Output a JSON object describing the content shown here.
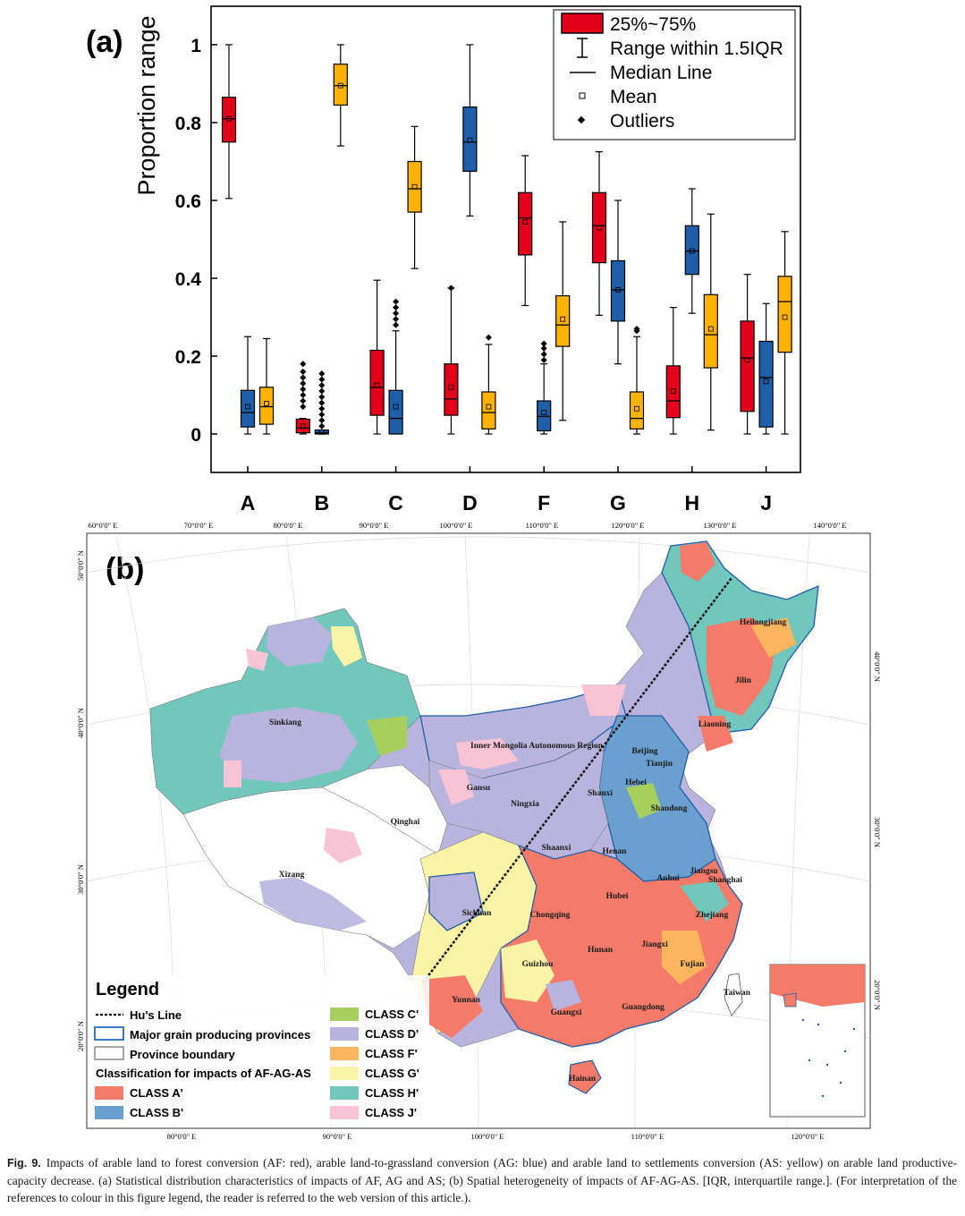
{
  "panel_a": {
    "label": "(a)",
    "legend": {
      "box": "25%~75%",
      "whisker": "Range within 1.5IQR",
      "median": "Median Line",
      "mean": "Mean",
      "outliers": "Outliers"
    }
  },
  "chart_data": {
    "type": "box",
    "ylabel": "Proportion range",
    "ylim": [
      -0.1,
      1.1
    ],
    "yticks": [
      "0",
      "0.2",
      "0.4",
      "0.6",
      "0.8",
      "1"
    ],
    "categories": [
      "A",
      "B",
      "C",
      "D",
      "F",
      "G",
      "H",
      "J"
    ],
    "colors": {
      "AF": "#e2001a",
      "AG": "#1f5ea8",
      "AS": "#ffb300"
    },
    "series": [
      {
        "key": "AF",
        "color": "#e2001a",
        "boxes": [
          {
            "cat": "A",
            "min": 0.605,
            "q1": 0.75,
            "median": 0.81,
            "q3": 0.865,
            "max": 1.0,
            "mean": 0.81,
            "outliers": []
          },
          {
            "cat": "B",
            "min": 0.0,
            "q1": 0.003,
            "median": 0.015,
            "q3": 0.038,
            "max": 0.04,
            "mean": 0.02,
            "outliers": [
              0.07,
              0.085,
              0.1,
              0.115,
              0.13,
              0.145,
              0.16,
              0.18
            ]
          },
          {
            "cat": "C",
            "min": 0.0,
            "q1": 0.048,
            "median": 0.12,
            "q3": 0.215,
            "max": 0.395,
            "mean": 0.125,
            "outliers": []
          },
          {
            "cat": "D",
            "min": 0.0,
            "q1": 0.048,
            "median": 0.09,
            "q3": 0.18,
            "max": 0.375,
            "mean": 0.12,
            "outliers": [
              0.375
            ]
          },
          {
            "cat": "F",
            "min": 0.33,
            "q1": 0.46,
            "median": 0.555,
            "q3": 0.62,
            "max": 0.715,
            "mean": 0.545,
            "outliers": []
          },
          {
            "cat": "G",
            "min": 0.305,
            "q1": 0.44,
            "median": 0.535,
            "q3": 0.62,
            "max": 0.725,
            "mean": 0.53,
            "outliers": []
          },
          {
            "cat": "H",
            "min": 0.0,
            "q1": 0.042,
            "median": 0.085,
            "q3": 0.175,
            "max": 0.325,
            "mean": 0.11,
            "outliers": []
          },
          {
            "cat": "J",
            "min": 0.0,
            "q1": 0.058,
            "median": 0.195,
            "q3": 0.29,
            "max": 0.41,
            "mean": 0.19,
            "outliers": []
          }
        ]
      },
      {
        "key": "AG",
        "color": "#1f5ea8",
        "boxes": [
          {
            "cat": "A",
            "min": 0.0,
            "q1": 0.018,
            "median": 0.055,
            "q3": 0.112,
            "max": 0.25,
            "mean": 0.07,
            "outliers": []
          },
          {
            "cat": "B",
            "min": 0.0,
            "q1": 0.0,
            "median": 0.003,
            "q3": 0.01,
            "max": 0.01,
            "mean": 0.005,
            "outliers": [
              0.02,
              0.035,
              0.05,
              0.065,
              0.08,
              0.095,
              0.11,
              0.125,
              0.14,
              0.155
            ]
          },
          {
            "cat": "C",
            "min": 0.0,
            "q1": 0.0,
            "median": 0.04,
            "q3": 0.112,
            "max": 0.265,
            "mean": 0.07,
            "outliers": [
              0.28,
              0.295,
              0.31,
              0.325,
              0.34
            ]
          },
          {
            "cat": "D",
            "min": 0.56,
            "q1": 0.675,
            "median": 0.75,
            "q3": 0.84,
            "max": 1.0,
            "mean": 0.755,
            "outliers": []
          },
          {
            "cat": "F",
            "min": 0.0,
            "q1": 0.008,
            "median": 0.045,
            "q3": 0.085,
            "max": 0.18,
            "mean": 0.055,
            "outliers": [
              0.19,
              0.205,
              0.22,
              0.232
            ]
          },
          {
            "cat": "G",
            "min": 0.18,
            "q1": 0.29,
            "median": 0.37,
            "q3": 0.445,
            "max": 0.6,
            "mean": 0.37,
            "outliers": []
          },
          {
            "cat": "H",
            "min": 0.31,
            "q1": 0.41,
            "median": 0.47,
            "q3": 0.535,
            "max": 0.63,
            "mean": 0.47,
            "outliers": []
          },
          {
            "cat": "J",
            "min": 0.0,
            "q1": 0.018,
            "median": 0.145,
            "q3": 0.238,
            "max": 0.335,
            "mean": 0.135,
            "outliers": []
          }
        ]
      },
      {
        "key": "AS",
        "color": "#ffb300",
        "boxes": [
          {
            "cat": "A",
            "min": 0.0,
            "q1": 0.025,
            "median": 0.07,
            "q3": 0.12,
            "max": 0.245,
            "mean": 0.078,
            "outliers": []
          },
          {
            "cat": "B",
            "min": 0.74,
            "q1": 0.845,
            "median": 0.895,
            "q3": 0.95,
            "max": 1.0,
            "mean": 0.895,
            "outliers": []
          },
          {
            "cat": "C",
            "min": 0.425,
            "q1": 0.57,
            "median": 0.63,
            "q3": 0.7,
            "max": 0.79,
            "mean": 0.635,
            "outliers": []
          },
          {
            "cat": "D",
            "min": 0.0,
            "q1": 0.013,
            "median": 0.055,
            "q3": 0.108,
            "max": 0.23,
            "mean": 0.07,
            "outliers": [
              0.248
            ]
          },
          {
            "cat": "F",
            "min": 0.035,
            "q1": 0.225,
            "median": 0.28,
            "q3": 0.355,
            "max": 0.545,
            "mean": 0.295,
            "outliers": []
          },
          {
            "cat": "G",
            "min": 0.0,
            "q1": 0.013,
            "median": 0.04,
            "q3": 0.108,
            "max": 0.25,
            "mean": 0.065,
            "outliers": [
              0.265,
              0.27
            ]
          },
          {
            "cat": "H",
            "min": 0.01,
            "q1": 0.17,
            "median": 0.255,
            "q3": 0.358,
            "max": 0.565,
            "mean": 0.27,
            "outliers": []
          },
          {
            "cat": "J",
            "min": 0.0,
            "q1": 0.21,
            "median": 0.34,
            "q3": 0.405,
            "max": 0.52,
            "mean": 0.3,
            "outliers": []
          }
        ]
      }
    ]
  },
  "panel_b": {
    "label": "(b)",
    "top_lon_labels": [
      "60°0'0\" E",
      "70°0'0\" E",
      "80°0'0\" E",
      "90°0'0\" E",
      "100°0'0\" E",
      "110°0'0\" E",
      "120°0'0\" E",
      "130°0'0\" E",
      "140°0'0\" E"
    ],
    "bottom_lon_labels": [
      "80°0'0\" E",
      "90°0'0\" E",
      "100°0'0\" E",
      "110°0'0\" E",
      "120°0'0\" E"
    ],
    "left_lat_labels": [
      "50°0'0\" N",
      "40°0'0\" N",
      "30°0'0\" N",
      "20°0'0\" N"
    ],
    "right_lat_labels": [
      "40°0'0\" N",
      "30°0'0\" N",
      "20°0'0\" N"
    ],
    "place_names": [
      "Heilongjiang",
      "Jilin",
      "Liaoning",
      "Inner Mongolia Autonomous Region",
      "Sinkiang",
      "Beijing",
      "Tianjin",
      "Hebei",
      "Shanxi",
      "Shandong",
      "Gansu",
      "Ningxia",
      "Qinghai",
      "Shaanxi",
      "Henan",
      "Xizang",
      "Jiangsu",
      "Anhui",
      "Shanghai",
      "Hubei",
      "Sichuan",
      "Chongqing",
      "Zhejiang",
      "Hunan",
      "Jiangxi",
      "Guizhou",
      "Fujian",
      "Yunnan",
      "Taiwan",
      "Guangxi",
      "Guangdong",
      "Hainan"
    ],
    "legend": {
      "title": "Legend",
      "hu_line": "Hu's Line",
      "major_grain": "Major grain producing provinces",
      "province_boundary": "Province boundary",
      "classification_title": "Classification for impacts of AF-AG-AS",
      "classes": [
        {
          "label": "CLASS A'",
          "color": "#f47b6a"
        },
        {
          "label": "CLASS B'",
          "color": "#6a9fd0"
        },
        {
          "label": "CLASS C'",
          "color": "#a7cf5e"
        },
        {
          "label": "CLASS D'",
          "color": "#b9b4dd"
        },
        {
          "label": "CLASS F'",
          "color": "#fdb45e"
        },
        {
          "label": "CLASS G'",
          "color": "#fbf4a6"
        },
        {
          "label": "CLASS H'",
          "color": "#72c7bd"
        },
        {
          "label": "CLASS J'",
          "color": "#f9c3d6"
        }
      ]
    }
  },
  "caption": {
    "label": "Fig. 9.",
    "text": "Impacts of arable land to forest conversion (AF: red), arable land-to-grassland conversion (AG: blue) and arable land to settlements conversion (AS: yellow) on arable land productive-capacity decrease. (a) Statistical distribution characteristics of impacts of AF, AG and AS; (b) Spatial heterogeneity of impacts of AF-AG-AS. [IQR, interquartile range.]. (For interpretation of the references to colour in this figure legend, the reader is referred to the web version of this article.)."
  }
}
